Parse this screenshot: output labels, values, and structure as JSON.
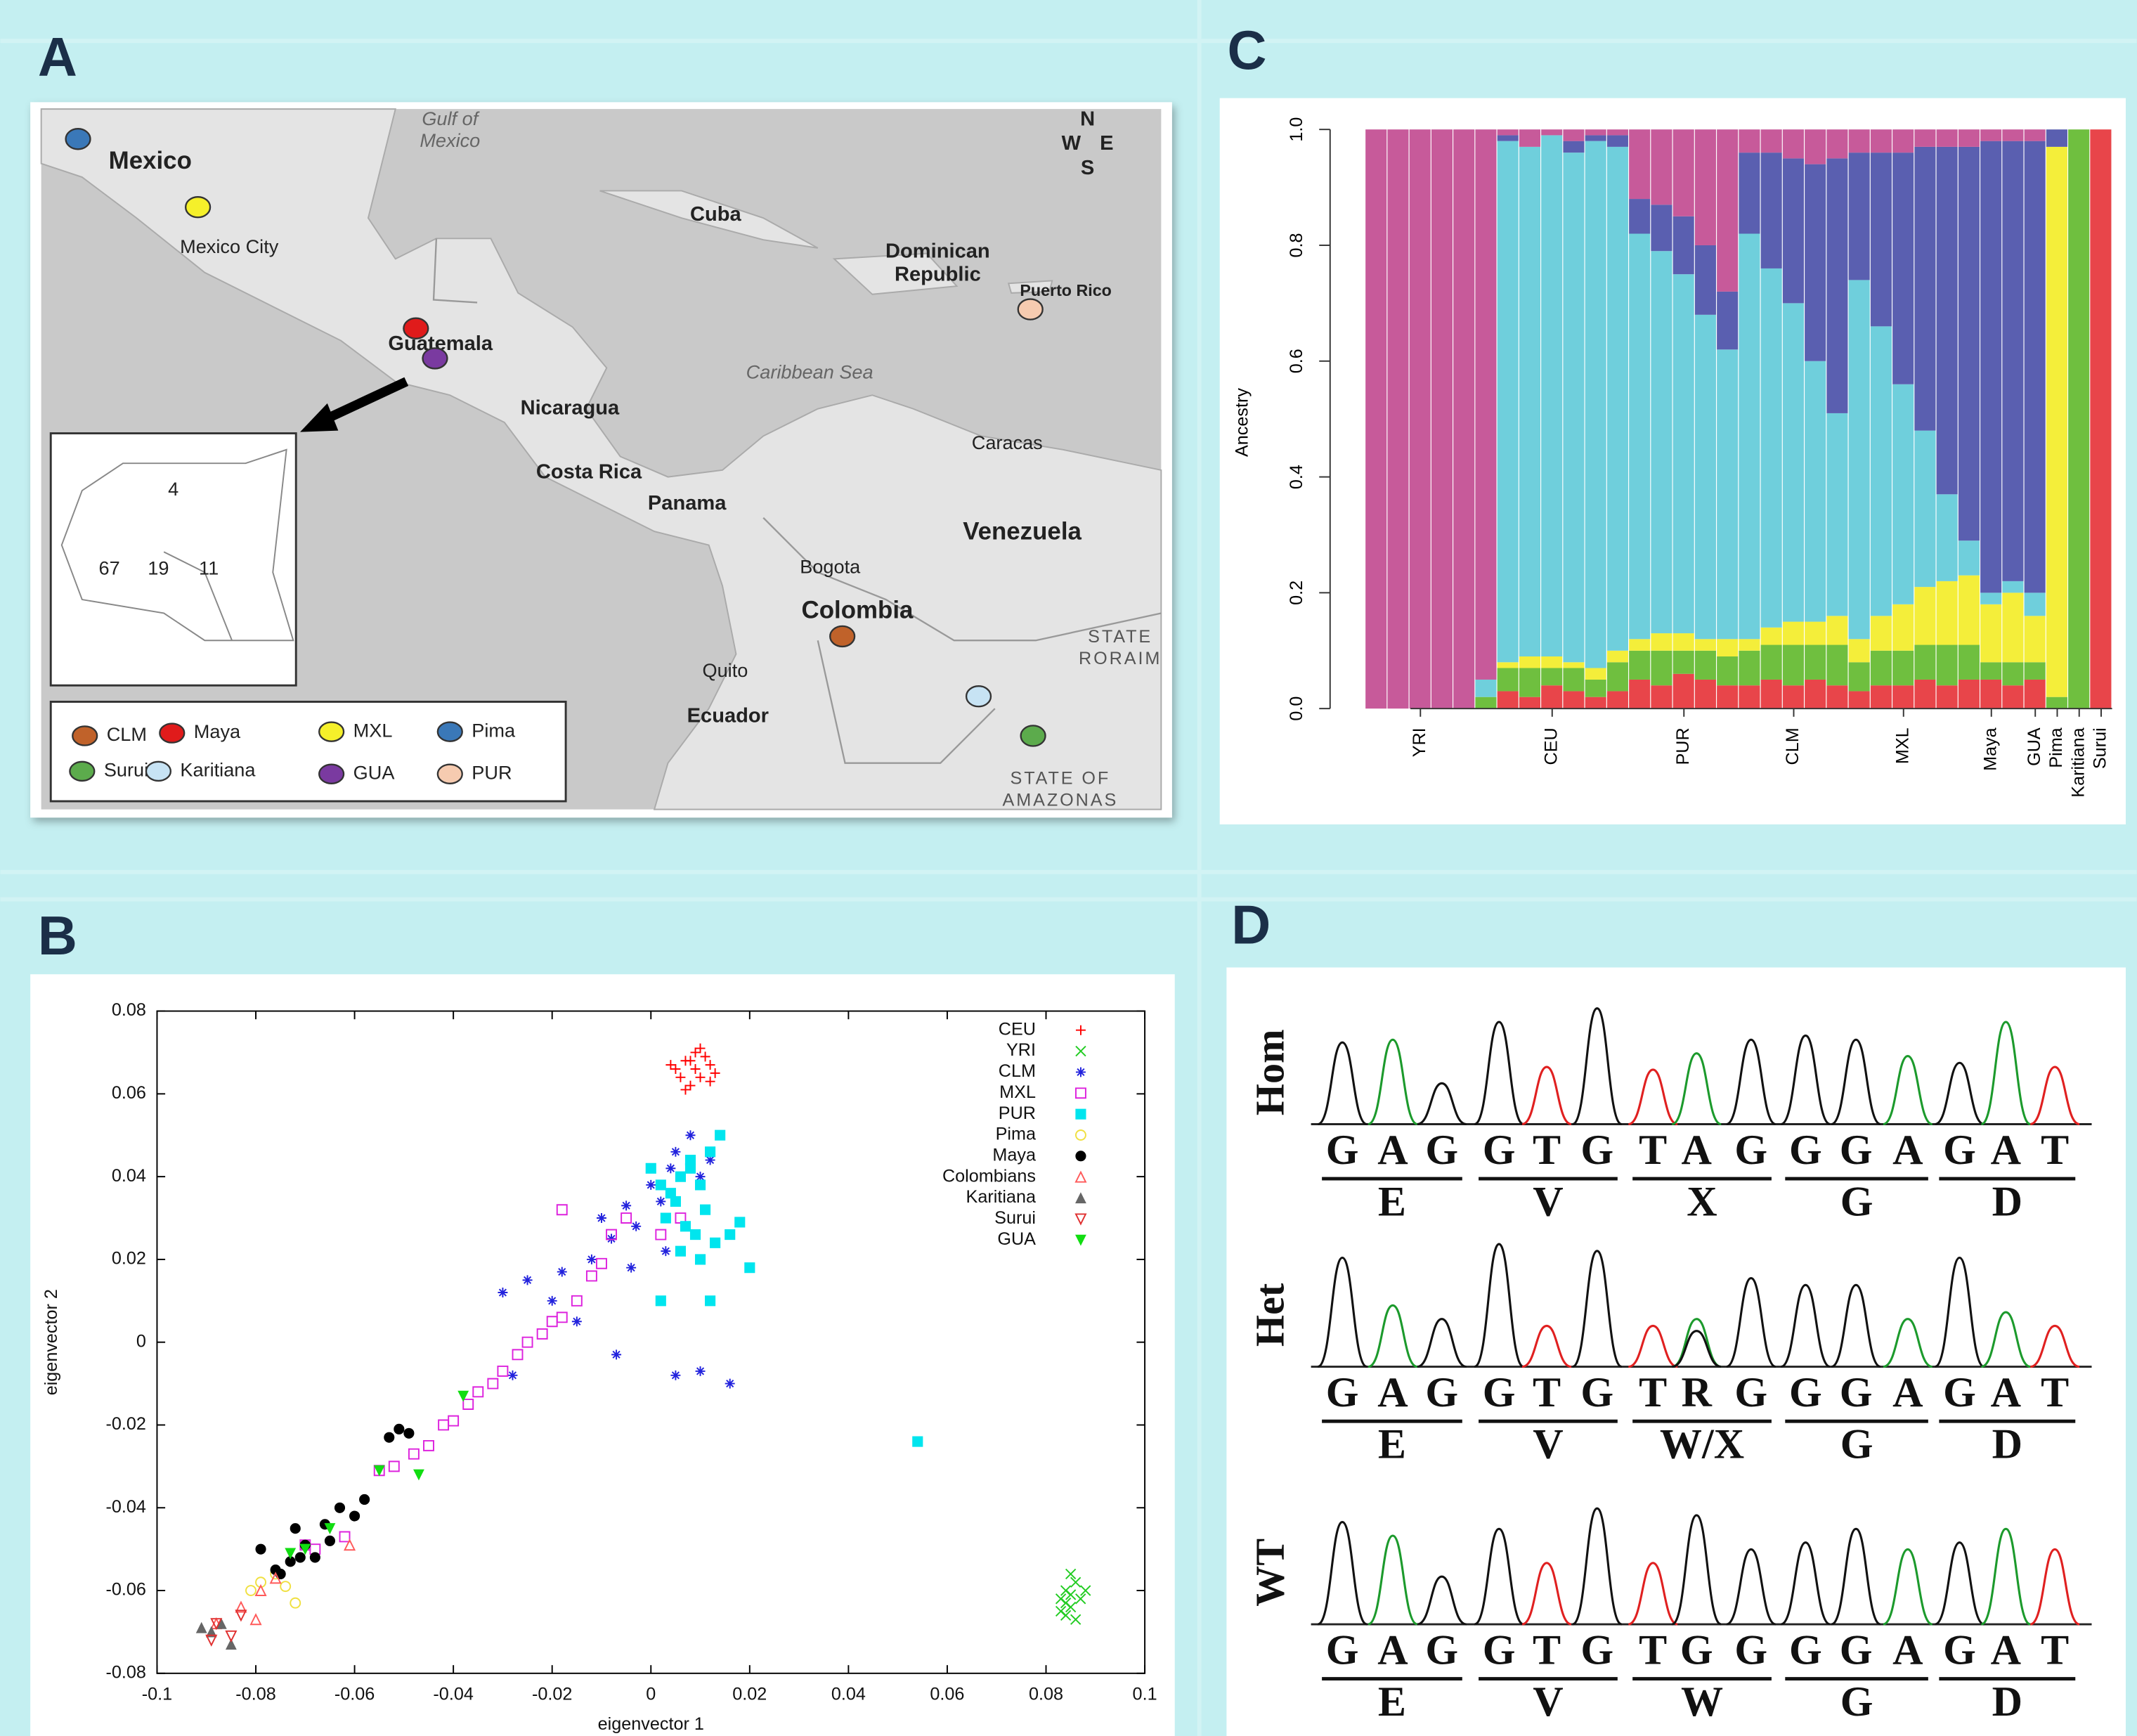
{
  "panel_labels": [
    "A",
    "B",
    "C",
    "D"
  ],
  "map": {
    "labels": [
      "Gulf of",
      "Mexico",
      "Mexico",
      "Mexico City",
      "Cuba",
      "Dominican",
      "Republic",
      "Puerto Rico",
      "Guatemala",
      "Caribbean Sea",
      "Nicaragua",
      "Costa Rica",
      "Panama",
      "Caracas",
      "Venezuela",
      "Bogota",
      "Colombia",
      "Quito",
      "Ecuador",
      "STATE",
      "RORAIM",
      "STATE OF",
      "AMAZONAS"
    ],
    "compass": [
      "N",
      "W",
      "E",
      "S"
    ],
    "inset_counts": [
      "4",
      "67",
      "19",
      "11"
    ],
    "legend": [
      {
        "name": "CLM",
        "color": "#c0622a"
      },
      {
        "name": "Maya",
        "color": "#e01b1b"
      },
      {
        "name": "MXL",
        "color": "#f5f02a"
      },
      {
        "name": "Pima",
        "color": "#3a78b8"
      },
      {
        "name": "Surui",
        "color": "#5cab4c"
      },
      {
        "name": "Karitiana",
        "color": "#c7e3f4"
      },
      {
        "name": "GUA",
        "color": "#7a3aa0"
      },
      {
        "name": "PUR",
        "color": "#f6cbb0"
      }
    ]
  },
  "chart_data": [
    {
      "type": "scatter",
      "xlabel": "eigenvector 1",
      "ylabel": "eigenvector 2",
      "xlim": [
        -0.1,
        0.1
      ],
      "ylim": [
        -0.08,
        0.08
      ],
      "xticks": [
        -0.1,
        -0.08,
        -0.06,
        -0.04,
        -0.02,
        0,
        0.02,
        0.04,
        0.06,
        0.08,
        0.1
      ],
      "yticks": [
        -0.08,
        -0.06,
        -0.04,
        -0.02,
        0,
        0.02,
        0.04,
        0.06,
        0.08
      ],
      "legend": "top-right",
      "series": [
        {
          "name": "CEU",
          "color": "#ff0000",
          "marker": "plus",
          "x": [
            0.005,
            0.007,
            0.009,
            0.01,
            0.012,
            0.008,
            0.006,
            0.011,
            0.013,
            0.004,
            0.009,
            0.01,
            0.007,
            0.012,
            0.008
          ],
          "y": [
            0.066,
            0.068,
            0.07,
            0.064,
            0.067,
            0.062,
            0.064,
            0.069,
            0.065,
            0.067,
            0.066,
            0.071,
            0.061,
            0.063,
            0.068
          ]
        },
        {
          "name": "YRI",
          "color": "#22cc22",
          "marker": "x",
          "x": [
            0.083,
            0.084,
            0.085,
            0.086,
            0.087,
            0.084,
            0.085,
            0.086,
            0.083,
            0.088,
            0.085,
            0.084
          ],
          "y": [
            -0.062,
            -0.06,
            -0.064,
            -0.058,
            -0.062,
            -0.066,
            -0.061,
            -0.067,
            -0.065,
            -0.06,
            -0.056,
            -0.063
          ]
        },
        {
          "name": "CLM",
          "color": "#2222dd",
          "marker": "asterisk",
          "x": [
            -0.03,
            -0.025,
            -0.02,
            -0.018,
            -0.012,
            -0.01,
            -0.008,
            -0.005,
            -0.003,
            0,
            0.002,
            0.004,
            0.005,
            0.008,
            0.01,
            0.012,
            0.016,
            -0.015,
            -0.007,
            0.005,
            0.01,
            -0.028,
            -0.004,
            0.003
          ],
          "y": [
            0.012,
            0.015,
            0.01,
            0.017,
            0.02,
            0.03,
            0.025,
            0.033,
            0.028,
            0.038,
            0.034,
            0.042,
            0.046,
            0.05,
            0.04,
            0.044,
            -0.01,
            0.005,
            -0.003,
            -0.008,
            -0.007,
            -0.008,
            0.018,
            0.022
          ]
        },
        {
          "name": "MXL",
          "color": "#dd22dd",
          "marker": "square-open",
          "x": [
            -0.055,
            -0.052,
            -0.048,
            -0.045,
            -0.042,
            -0.04,
            -0.037,
            -0.035,
            -0.032,
            -0.03,
            -0.027,
            -0.025,
            -0.022,
            -0.02,
            -0.018,
            -0.015,
            -0.012,
            -0.01,
            -0.008,
            -0.005,
            0.002,
            0.006,
            -0.018,
            -0.068,
            -0.062,
            -0.07
          ],
          "y": [
            -0.031,
            -0.03,
            -0.027,
            -0.025,
            -0.02,
            -0.019,
            -0.015,
            -0.012,
            -0.01,
            -0.007,
            -0.003,
            0,
            0.002,
            0.005,
            0.006,
            0.01,
            0.016,
            0.019,
            0.026,
            0.03,
            0.026,
            0.03,
            0.032,
            -0.05,
            -0.047,
            -0.049
          ]
        },
        {
          "name": "PUR",
          "color": "#00e5ee",
          "marker": "square",
          "x": [
            0,
            0.002,
            0.004,
            0.006,
            0.008,
            0.01,
            0.012,
            0.014,
            0.003,
            0.005,
            0.007,
            0.009,
            0.011,
            0.013,
            0.016,
            0.018,
            0.02,
            0.002,
            0.01,
            0.012,
            0.054,
            0.006,
            0.008
          ],
          "y": [
            0.042,
            0.038,
            0.036,
            0.04,
            0.044,
            0.038,
            0.046,
            0.05,
            0.03,
            0.034,
            0.028,
            0.026,
            0.032,
            0.024,
            0.026,
            0.029,
            0.018,
            0.01,
            0.02,
            0.01,
            -0.024,
            0.022,
            0.042
          ]
        },
        {
          "name": "Pima",
          "color": "#f0e040",
          "marker": "circle-open",
          "x": [
            -0.081,
            -0.079,
            -0.076,
            -0.072,
            -0.074
          ],
          "y": [
            -0.06,
            -0.058,
            -0.056,
            -0.063,
            -0.059
          ]
        },
        {
          "name": "Maya",
          "color": "#000000",
          "marker": "circle",
          "x": [
            -0.079,
            -0.076,
            -0.073,
            -0.072,
            -0.07,
            -0.068,
            -0.066,
            -0.063,
            -0.06,
            -0.058,
            -0.053,
            -0.051,
            -0.049,
            -0.075,
            -0.065,
            -0.071
          ],
          "y": [
            -0.05,
            -0.055,
            -0.053,
            -0.045,
            -0.049,
            -0.052,
            -0.044,
            -0.04,
            -0.042,
            -0.038,
            -0.023,
            -0.021,
            -0.022,
            -0.056,
            -0.048,
            -0.052
          ]
        },
        {
          "name": "Colombians",
          "color": "#ff5a5a",
          "marker": "triangle-open",
          "x": [
            -0.088,
            -0.083,
            -0.079,
            -0.076,
            -0.061,
            -0.08
          ],
          "y": [
            -0.068,
            -0.064,
            -0.06,
            -0.057,
            -0.049,
            -0.067
          ]
        },
        {
          "name": "Karitiana",
          "color": "#666666",
          "marker": "triangle",
          "x": [
            -0.091,
            -0.089,
            -0.087,
            -0.085
          ],
          "y": [
            -0.069,
            -0.07,
            -0.068,
            -0.073
          ]
        },
        {
          "name": "Surui",
          "color": "#e03030",
          "marker": "triangle-down-open",
          "x": [
            -0.088,
            -0.085,
            -0.083,
            -0.089
          ],
          "y": [
            -0.068,
            -0.071,
            -0.066,
            -0.072
          ]
        },
        {
          "name": "GUA",
          "color": "#11dd11",
          "marker": "triangle-down",
          "x": [
            -0.038,
            -0.047,
            -0.055,
            -0.065,
            -0.07,
            -0.073
          ],
          "y": [
            -0.013,
            -0.032,
            -0.031,
            -0.045,
            -0.05,
            -0.051
          ]
        }
      ]
    },
    {
      "type": "stacked-bar",
      "ylabel": "Ancestry",
      "ylim": [
        0,
        1
      ],
      "yticks": [
        {
          "value": 0,
          "label": "0.0"
        },
        0.2,
        0.4,
        0.6,
        0.8,
        {
          "value": 1,
          "label": "1.0"
        }
      ],
      "categories": [
        null,
        null,
        "YRI",
        null,
        null,
        null,
        null,
        null,
        "CEU",
        null,
        null,
        null,
        null,
        null,
        "PUR",
        null,
        null,
        null,
        null,
        "CLM",
        null,
        null,
        null,
        null,
        "MXL",
        null,
        null,
        null,
        "Maya",
        null,
        "GUA",
        "Pima",
        "Karitiana",
        "Surui"
      ],
      "series": [
        {
          "color": "#e8454a",
          "values": [
            0,
            0,
            0,
            0,
            0,
            0,
            0.03,
            0.02,
            0.04,
            0.03,
            0.02,
            0.03,
            0.05,
            0.04,
            0.06,
            0.05,
            0.04,
            0.04,
            0.05,
            0.04,
            0.05,
            0.04,
            0.03,
            0.04,
            0.04,
            0.05,
            0.04,
            0.05,
            0.05,
            0.04,
            0.05,
            0,
            0,
            1
          ]
        },
        {
          "color": "#6fbf3f",
          "values": [
            0,
            0,
            0,
            0,
            0,
            0.02,
            0.04,
            0.05,
            0.03,
            0.04,
            0.03,
            0.05,
            0.05,
            0.06,
            0.04,
            0.05,
            0.05,
            0.06,
            0.06,
            0.07,
            0.06,
            0.07,
            0.05,
            0.06,
            0.06,
            0.06,
            0.07,
            0.06,
            0.03,
            0.04,
            0.03,
            0.02,
            1,
            0
          ]
        },
        {
          "color": "#f4ee3a",
          "values": [
            0,
            0,
            0,
            0,
            0,
            0,
            0.01,
            0.02,
            0.02,
            0.01,
            0.02,
            0.02,
            0.02,
            0.03,
            0.03,
            0.02,
            0.03,
            0.02,
            0.03,
            0.04,
            0.04,
            0.05,
            0.04,
            0.06,
            0.08,
            0.1,
            0.11,
            0.12,
            0.1,
            0.12,
            0.08,
            0.95,
            0,
            0
          ]
        },
        {
          "color": "#6fcfdc",
          "values": [
            0,
            0,
            0,
            0,
            0,
            0.03,
            0.9,
            0.88,
            0.9,
            0.88,
            0.91,
            0.87,
            0.7,
            0.66,
            0.62,
            0.56,
            0.5,
            0.7,
            0.62,
            0.55,
            0.45,
            0.35,
            0.62,
            0.5,
            0.38,
            0.27,
            0.15,
            0.06,
            0.02,
            0.02,
            0.04,
            0,
            0,
            0
          ]
        },
        {
          "color": "#5a5fb0",
          "values": [
            0,
            0,
            0,
            0,
            0,
            0,
            0.01,
            0,
            0,
            0.02,
            0.01,
            0.02,
            0.06,
            0.08,
            0.1,
            0.12,
            0.1,
            0.14,
            0.2,
            0.25,
            0.34,
            0.44,
            0.22,
            0.3,
            0.4,
            0.49,
            0.6,
            0.68,
            0.78,
            0.76,
            0.78,
            0.03,
            0,
            0
          ]
        },
        {
          "color": "#c75a9a",
          "values": [
            1,
            1,
            1,
            1,
            1,
            0.95,
            0.01,
            0.03,
            0.01,
            0.02,
            0.01,
            0.01,
            0.12,
            0.13,
            0.15,
            0.2,
            0.28,
            0.04,
            0.04,
            0.05,
            0.06,
            0.05,
            0.04,
            0.04,
            0.04,
            0.03,
            0.03,
            0.03,
            0.02,
            0.02,
            0.02,
            0,
            0,
            0
          ]
        }
      ]
    }
  ],
  "chromatogram": {
    "rows": [
      {
        "label": "Hom",
        "bases": [
          "G",
          "A",
          "G",
          "G",
          "T",
          "G",
          "T",
          "A",
          "G",
          "G",
          "G",
          "A",
          "G",
          "A",
          "T"
        ],
        "amino_acids": [
          "E",
          "V",
          "X",
          "G",
          "D"
        ]
      },
      {
        "label": "Het",
        "bases": [
          "G",
          "A",
          "G",
          "G",
          "T",
          "G",
          "T",
          "R",
          "G",
          "G",
          "G",
          "A",
          "G",
          "A",
          "T"
        ],
        "amino_acids": [
          "E",
          "V",
          "W/X",
          "G",
          "D"
        ]
      },
      {
        "label": "WT",
        "bases": [
          "G",
          "A",
          "G",
          "G",
          "T",
          "G",
          "T",
          "G",
          "G",
          "G",
          "G",
          "A",
          "G",
          "A",
          "T"
        ],
        "amino_acids": [
          "E",
          "V",
          "W",
          "G",
          "D"
        ]
      }
    ]
  }
}
